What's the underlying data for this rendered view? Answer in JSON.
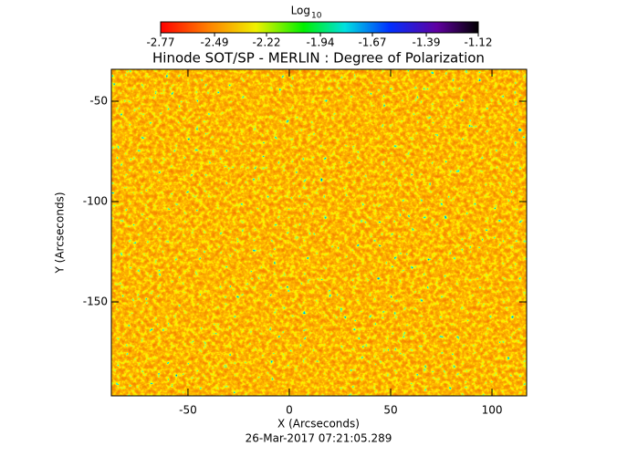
{
  "chart_data": {
    "type": "heatmap",
    "title": "Hinode SOT/SP - MERLIN : Degree of Polarization",
    "x_label": "X (Arcseconds)",
    "y_label": "Y (Arcseconds)",
    "timestamp": "26-Mar-2017 07:21:05.289",
    "xlim": [
      -87.8,
      117.1
    ],
    "xticks": [
      -50,
      0,
      50,
      100
    ],
    "ylim": [
      -196.8,
      -34.1
    ],
    "yticks": [
      -50,
      -100,
      -150
    ],
    "colorbar": {
      "label": "Log",
      "label_sub": "10",
      "lim": [
        -2.77,
        -1.12
      ],
      "ticks": [
        -2.77,
        -2.49,
        -2.22,
        -1.94,
        -1.67,
        -1.39,
        -1.12
      ]
    }
  }
}
